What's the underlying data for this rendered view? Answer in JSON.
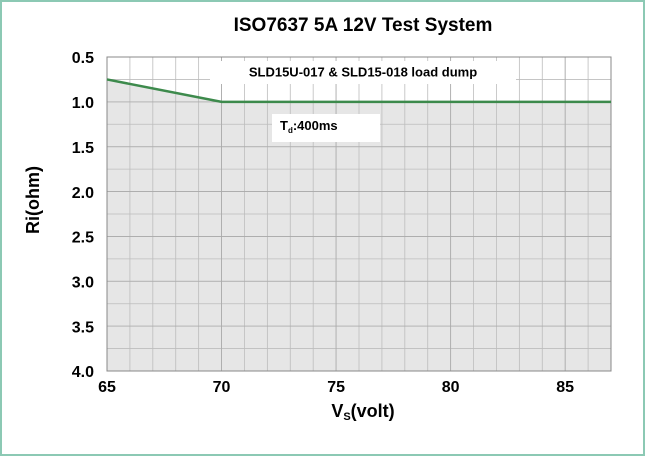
{
  "chart_data": {
    "type": "area",
    "title": "ISO7637 5A 12V Test System",
    "xlabel": {
      "main": "V",
      "sub": "S",
      "rest": "(volt)"
    },
    "ylabel": "Ri(ohm)",
    "annotations": [
      {
        "text": "SLD15U-017 & SLD15-018 load dump"
      },
      {
        "main": "T",
        "sub": "d",
        "rest": ":400ms"
      }
    ],
    "x": [
      65,
      70,
      87
    ],
    "series": [
      {
        "color": "#3d8a4c",
        "values": [
          0.75,
          1.0,
          1.0
        ]
      }
    ],
    "xlim": [
      65,
      87
    ],
    "xticks": [
      65,
      70,
      75,
      80,
      85
    ],
    "ylim": [
      0.5,
      4.0
    ],
    "yinverted": true,
    "yticks": [
      0.5,
      {
        "value": 1,
        "label": "1.0"
      },
      1.5,
      {
        "value": 2,
        "label": "2.0"
      },
      2.5,
      {
        "value": 3,
        "label": "3.0"
      },
      3.5,
      {
        "value": 4,
        "label": "4.0"
      }
    ],
    "grid": true
  }
}
